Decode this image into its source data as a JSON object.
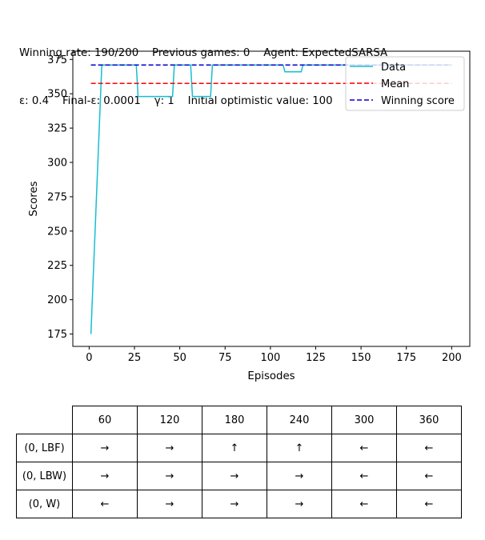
{
  "header": {
    "line1": "Winning rate: 190/200    Previous games: 0    Agent: ExpectedSARSA",
    "line2": "ε: 0.4    Final-ε: 0.0001    γ: 1    Initial optimistic value: 100"
  },
  "colors": {
    "data": "#17becf",
    "mean": "#ff0000",
    "winning": "#0000cc"
  },
  "chart_data": {
    "type": "line",
    "title": "",
    "xlabel": "Episodes",
    "ylabel": "Scores",
    "xlim": [
      -9,
      210
    ],
    "ylim": [
      166,
      381
    ],
    "xticks": [
      0,
      25,
      50,
      75,
      100,
      125,
      150,
      175,
      200
    ],
    "yticks": [
      175,
      200,
      225,
      250,
      275,
      300,
      325,
      350,
      375
    ],
    "legend_position": "top-right",
    "legend": [
      "Data",
      "Mean",
      "Winning score"
    ],
    "series": [
      {
        "name": "Data",
        "style": "solid",
        "x": [
          1,
          7,
          26,
          27,
          46,
          47,
          56,
          57,
          67,
          68,
          107,
          108,
          117,
          118,
          200
        ],
        "y": [
          175,
          371,
          371,
          348,
          348,
          371,
          371,
          348,
          348,
          371,
          371,
          366,
          366,
          371,
          371
        ]
      },
      {
        "name": "Mean",
        "style": "dashed",
        "x": [
          1,
          200
        ],
        "y": [
          357.5,
          357.5
        ]
      },
      {
        "name": "Winning score",
        "style": "dashed",
        "x": [
          1,
          200
        ],
        "y": [
          371,
          371
        ]
      }
    ]
  },
  "policy_table": {
    "columns": [
      "60",
      "120",
      "180",
      "240",
      "300",
      "360"
    ],
    "rows": [
      {
        "label": "(0, LBF)",
        "cells": [
          "→",
          "→",
          "↑",
          "↑",
          "←",
          "←"
        ]
      },
      {
        "label": "(0, LBW)",
        "cells": [
          "→",
          "→",
          "→",
          "→",
          "←",
          "←"
        ]
      },
      {
        "label": "(0, W)",
        "cells": [
          "←",
          "→",
          "→",
          "→",
          "←",
          "←"
        ]
      }
    ]
  }
}
